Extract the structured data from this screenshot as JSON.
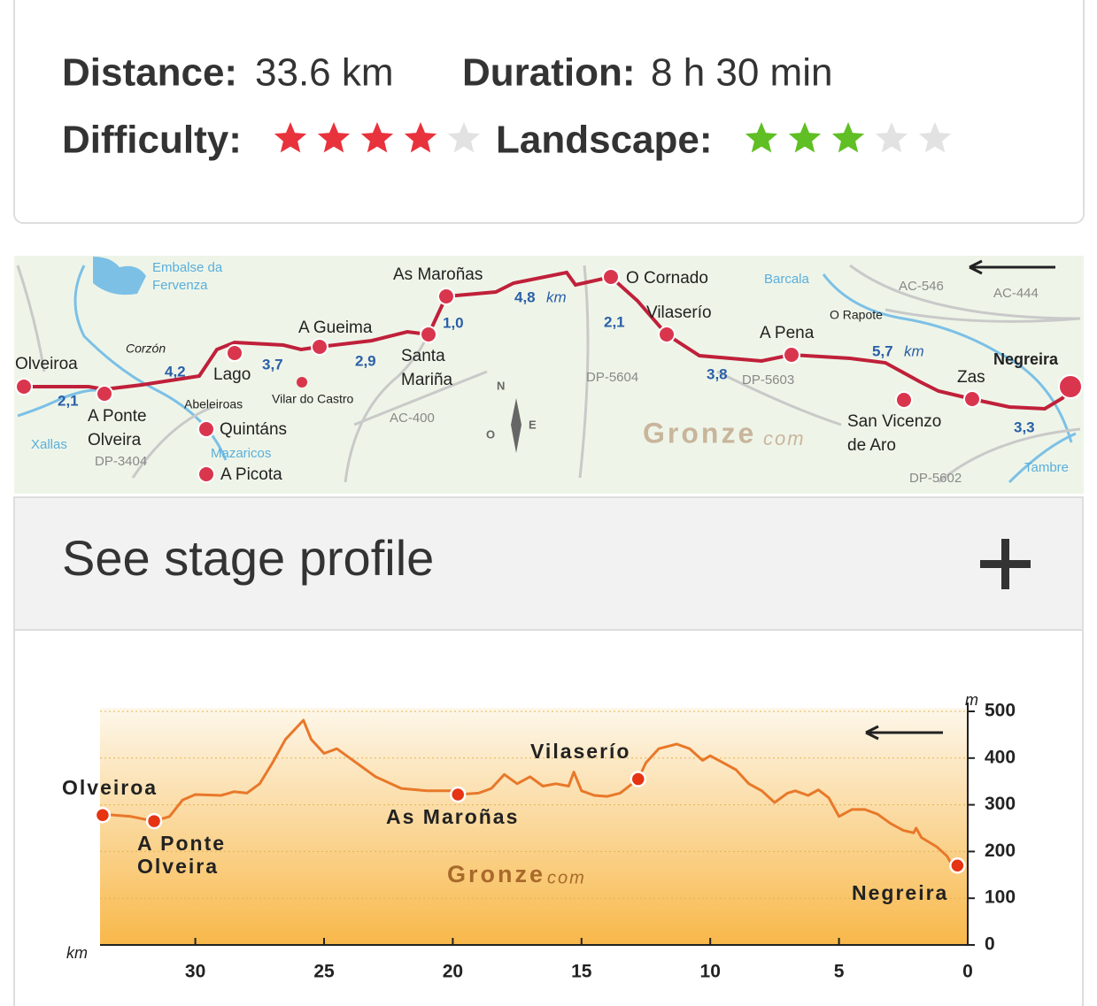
{
  "info": {
    "distance_label": "Distance:",
    "distance": "33.6 km",
    "duration_label": "Duration:",
    "duration": "8 h 30 min",
    "difficulty_label": "Difficulty:",
    "difficulty": 4,
    "landscape_label": "Landscape:",
    "landscape": 3,
    "stars_total": 5
  },
  "map": {
    "places": [
      [
        "Olveiroa"
      ],
      [
        "A Ponte",
        "Olveira"
      ],
      [
        "Lago"
      ],
      [
        "Quintáns"
      ],
      [
        "A Picota"
      ],
      [
        "A Gueima"
      ],
      [
        "Santa",
        "Mariña"
      ],
      [
        "As Maroñas"
      ],
      [
        "O Cornado"
      ],
      [
        "Vilaserío"
      ],
      [
        "A Pena"
      ],
      [
        "San Vicenzo",
        "de Aro"
      ],
      [
        "Zas"
      ],
      [
        "Negreira"
      ]
    ],
    "hamlets": [
      "Corzón",
      "Abeleiroas",
      "Vilar do Castro",
      "O Rapote"
    ],
    "waters": [
      [
        "Embalse da",
        "Fervenza"
      ],
      [
        "Xallas"
      ],
      [
        "Mazaricos"
      ],
      [
        "Barcala"
      ],
      [
        "Tambre"
      ]
    ],
    "roads": [
      "DP-3404",
      "AC-400",
      "DP-5604",
      "DP-5603",
      "AC-546",
      "AC-444",
      "DP-5602"
    ],
    "distances": [
      {
        "value": "2,1"
      },
      {
        "value": "4,2"
      },
      {
        "value": "3,7"
      },
      {
        "value": "2,9"
      },
      {
        "value": "1,0"
      },
      {
        "value": "4,8",
        "unit": "km"
      },
      {
        "value": "2,1"
      },
      {
        "value": "3,8"
      },
      {
        "value": "5,7",
        "unit": "km"
      },
      {
        "value": "3,3"
      }
    ],
    "compass": [
      "N",
      "O",
      "E"
    ],
    "watermark": [
      "Gronze",
      "com"
    ]
  },
  "accordion": {
    "title": "See stage profile"
  },
  "chart_data": {
    "type": "line",
    "color": "#e8782a",
    "x": [
      33.6,
      32.5,
      31.6,
      31,
      30.5,
      30,
      29,
      28.5,
      28,
      27.5,
      27,
      26.5,
      25.8,
      25.5,
      25,
      24.5,
      24,
      23,
      22,
      21,
      20,
      19.8,
      19,
      18.5,
      18,
      17.5,
      17,
      16.5,
      16,
      15.5,
      15.3,
      15,
      14.5,
      14,
      13.5,
      12.8,
      12.5,
      12,
      11.3,
      10.8,
      10.3,
      10,
      9.5,
      9,
      8.5,
      8,
      7.5,
      7,
      6.7,
      6.2,
      5.8,
      5.4,
      5,
      4.5,
      4,
      3.5,
      3,
      2.5,
      2.1,
      2,
      1.8,
      1.2,
      0.8,
      0.5,
      0.3
    ],
    "values": [
      280,
      275,
      265,
      275,
      310,
      322,
      320,
      328,
      325,
      345,
      390,
      440,
      481,
      440,
      410,
      420,
      400,
      360,
      335,
      330,
      330,
      322,
      325,
      335,
      365,
      345,
      360,
      340,
      345,
      340,
      370,
      330,
      320,
      318,
      325,
      355,
      390,
      420,
      430,
      420,
      395,
      405,
      390,
      375,
      345,
      330,
      305,
      325,
      330,
      320,
      332,
      315,
      275,
      290,
      290,
      280,
      260,
      245,
      240,
      250,
      230,
      210,
      190,
      160,
      165
    ],
    "xlim": [
      33.7,
      0
    ],
    "xticks": [
      30,
      25,
      20,
      15,
      10,
      5,
      0
    ],
    "ylim": [
      0,
      500
    ],
    "yticks": [
      0,
      100,
      200,
      300,
      400,
      500
    ],
    "xlabel": "km",
    "ylabel": "m",
    "grid": true,
    "waypoints": {
      "x": [
        33.6,
        31.6,
        19.8,
        12.8,
        0.4
      ],
      "values": [
        278,
        265,
        322,
        355,
        170
      ],
      "labels": [
        [
          "Olveiroa"
        ],
        [
          "A Ponte",
          "Olveira"
        ],
        [
          "As Maroñas"
        ],
        [
          "Vilaserío"
        ],
        [
          "Negreira"
        ]
      ],
      "color": "#e63312"
    },
    "watermark": [
      "Gronze",
      "com"
    ]
  }
}
